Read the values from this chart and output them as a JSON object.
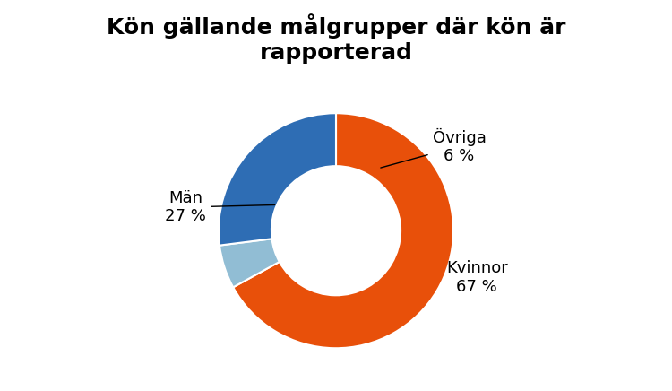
{
  "title": "Kön gällande målgrupper där kön är\nrapporterad",
  "slices": [
    67,
    6,
    27
  ],
  "colors": [
    "#E8500A",
    "#91BDD4",
    "#2E6DB4"
  ],
  "startangle": 90,
  "donut_width": 0.45,
  "title_fontsize": 18,
  "label_fontsize": 13,
  "background_color": "#ffffff"
}
